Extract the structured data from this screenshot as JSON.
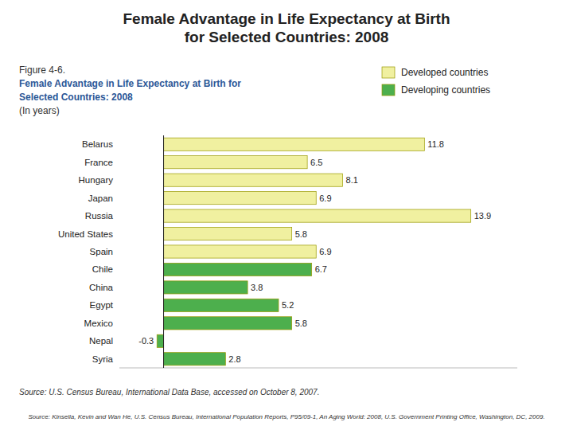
{
  "chart_data": {
    "type": "bar",
    "orientation": "horizontal",
    "title": "Female Advantage in Life Expectancy at Birth\nfor Selected Countries: 2008",
    "subtitle": [
      "Figure 4-6.",
      "Female Advantage in Life Expectancy at Birth for",
      "Selected Countries: 2008",
      "(In years)"
    ],
    "annotations": [
      "Source: U.S. Census Bureau, International Data Base, accessed on October 8, 2007.",
      "Source: Kinsella, Kevin and Wan He, U.S. Census Bureau, International Population Reports, P95/09-1, An Aging World: 2008, U.S. Government Printing Office, Washington, DC, 2009."
    ],
    "categories": [
      "Belarus",
      "France",
      "Hungary",
      "Japan",
      "Russia",
      "United States",
      "Spain",
      "Chile",
      "China",
      "Egypt",
      "Mexico",
      "Nepal",
      "Syria"
    ],
    "series": [
      {
        "name": "Developed countries",
        "color": "#F0F0A0",
        "values": [
          11.8,
          6.5,
          8.1,
          6.9,
          13.9,
          5.8,
          6.9,
          null,
          null,
          null,
          null,
          null,
          null
        ]
      },
      {
        "name": "Developing countries",
        "color": "#4DAF4D",
        "values": [
          null,
          null,
          null,
          null,
          null,
          null,
          null,
          6.7,
          3.8,
          5.2,
          5.8,
          -0.3,
          2.8
        ]
      }
    ],
    "xlim": [
      -2,
      16
    ],
    "legend": "upper right",
    "data_labels": true,
    "tick_labels": "y",
    "grid": false
  }
}
